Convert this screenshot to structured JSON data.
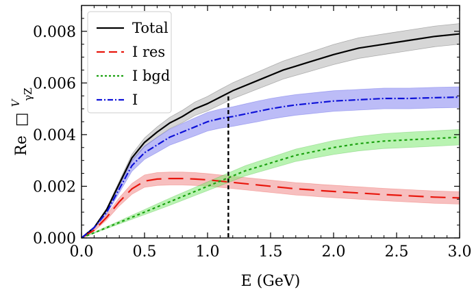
{
  "chart_data": {
    "type": "line",
    "xlabel": "E (GeV)",
    "ylabel": {
      "main": "Re",
      "symbol": "□",
      "superscript": "V",
      "subscript": "γZ"
    },
    "xlim": [
      0.0,
      3.0
    ],
    "ylim": [
      0.0,
      0.009
    ],
    "xticks": [
      "0.0",
      "0.5",
      "1.0",
      "1.5",
      "2.0",
      "2.5",
      "3.0"
    ],
    "yticks": [
      "0.000",
      "0.002",
      "0.004",
      "0.006",
      "0.008"
    ],
    "xtick_values": [
      0.0,
      0.5,
      1.0,
      1.5,
      2.0,
      2.5,
      3.0
    ],
    "ytick_values": [
      0.0,
      0.002,
      0.004,
      0.006,
      0.008
    ],
    "vline_x": 1.165,
    "legend_placement": "top-left",
    "x": [
      0.0,
      0.1,
      0.2,
      0.3,
      0.4,
      0.5,
      0.6,
      0.7,
      0.8,
      0.9,
      1.0,
      1.1,
      1.2,
      1.3,
      1.4,
      1.5,
      1.6,
      1.7,
      1.8,
      1.9,
      2.0,
      2.2,
      2.4,
      2.6,
      2.8,
      3.0
    ],
    "series": [
      {
        "name": "Total",
        "color": "#000000",
        "dash": "",
        "band_color": "#b4b4b4",
        "values": [
          0.0,
          0.0004,
          0.0011,
          0.0021,
          0.0031,
          0.0037,
          0.0041,
          0.00445,
          0.0047,
          0.005,
          0.0052,
          0.00545,
          0.0057,
          0.0059,
          0.0061,
          0.0063,
          0.0065,
          0.00665,
          0.0068,
          0.00695,
          0.0071,
          0.00735,
          0.0075,
          0.00765,
          0.0078,
          0.0079
        ],
        "band": [
          0.0,
          3e-05,
          6e-05,
          0.0001,
          0.00014,
          0.00017,
          0.0002,
          0.00022,
          0.00024,
          0.00026,
          0.00028,
          0.0003,
          0.00031,
          0.00032,
          0.00033,
          0.00034,
          0.00035,
          0.00036,
          0.00037,
          0.00038,
          0.00039,
          0.0004,
          0.0004,
          0.0004,
          0.0004,
          0.0004
        ]
      },
      {
        "name": "I res",
        "color": "#e8160c",
        "dash": "22,10",
        "band_color": "#f08a8a",
        "values": [
          0.0,
          0.0003,
          0.0008,
          0.0014,
          0.0019,
          0.0022,
          0.00228,
          0.0023,
          0.0023,
          0.00228,
          0.00225,
          0.0022,
          0.00215,
          0.0021,
          0.00205,
          0.002,
          0.00195,
          0.0019,
          0.00187,
          0.00183,
          0.0018,
          0.00174,
          0.00168,
          0.00163,
          0.00158,
          0.00155
        ],
        "band": [
          0.0,
          4e-05,
          0.0001,
          0.00016,
          0.00021,
          0.00024,
          0.00025,
          0.00025,
          0.00025,
          0.00025,
          0.00024,
          0.00024,
          0.00024,
          0.00024,
          0.00024,
          0.00024,
          0.00024,
          0.00024,
          0.00024,
          0.00024,
          0.00024,
          0.00024,
          0.00024,
          0.00024,
          0.00024,
          0.00024
        ]
      },
      {
        "name": "I bgd",
        "color": "#1aa10f",
        "dash": "4,4",
        "band_color": "#7fea72",
        "values": [
          0.0,
          0.0002,
          0.0004,
          0.0006,
          0.0008,
          0.001,
          0.0012,
          0.0014,
          0.0016,
          0.0018,
          0.002,
          0.0022,
          0.0024,
          0.0026,
          0.00275,
          0.0029,
          0.00305,
          0.0032,
          0.0033,
          0.0034,
          0.0035,
          0.00365,
          0.00375,
          0.0038,
          0.00385,
          0.0039
        ],
        "band": [
          0.0,
          2e-05,
          4e-05,
          6e-05,
          8e-05,
          0.0001,
          0.00012,
          0.00014,
          0.00015,
          0.00016,
          0.00017,
          0.00018,
          0.00019,
          0.0002,
          0.00021,
          0.00022,
          0.00023,
          0.00024,
          0.00025,
          0.00026,
          0.00027,
          0.00028,
          0.00029,
          0.0003,
          0.0003,
          0.0003
        ]
      },
      {
        "name": "I",
        "color": "#0c10d8",
        "dash": "10,3,2,3",
        "band_color": "#8585f0",
        "values": [
          0.0,
          0.0004,
          0.001,
          0.0019,
          0.0028,
          0.0033,
          0.0036,
          0.0039,
          0.0041,
          0.0043,
          0.0045,
          0.00462,
          0.0047,
          0.0048,
          0.0049,
          0.005,
          0.00508,
          0.00515,
          0.0052,
          0.00525,
          0.0053,
          0.00535,
          0.0054,
          0.0054,
          0.00543,
          0.00545
        ],
        "band": [
          0.0,
          3e-05,
          8e-05,
          0.00015,
          0.00022,
          0.00026,
          0.00029,
          0.00031,
          0.00033,
          0.00035,
          0.00036,
          0.00037,
          0.00038,
          0.00039,
          0.0004,
          0.0004,
          0.0004,
          0.0004,
          0.0004,
          0.0004,
          0.0004,
          0.0004,
          0.0004,
          0.0004,
          0.0004,
          0.0004
        ]
      }
    ]
  }
}
